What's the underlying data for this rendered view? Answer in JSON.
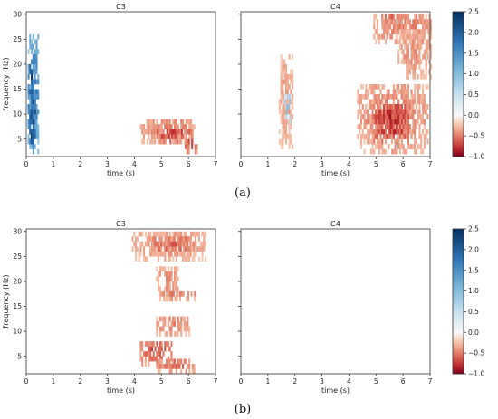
{
  "chart_data": [
    {
      "type": "heatmap",
      "figure_label": "(a)",
      "x_ticks": [
        0,
        1,
        2,
        3,
        4,
        5,
        6,
        7
      ],
      "y_ticks": [
        5,
        10,
        15,
        20,
        25,
        30
      ],
      "xlim": [
        0,
        7
      ],
      "ylim": [
        1.5,
        30.5
      ],
      "xlabel": "time (s)",
      "ylabel": "frequency (Hz)",
      "colorbar": {
        "range": [
          -1.0,
          2.5
        ],
        "ticks": [
          -1.0,
          -0.5,
          0.0,
          0.5,
          1.0,
          1.5,
          2.0,
          2.5
        ],
        "tick_labels": [
          "−1.0",
          "−0.5",
          "0.0",
          "0.5",
          "1.0",
          "1.5",
          "2.0",
          "2.5"
        ],
        "colormap": "RdBu",
        "low_color": "#67001f",
        "mid_color": "#f7f7f7",
        "high_color": "#053061"
      },
      "panels": [
        {
          "title": "C3",
          "show_ylabels": true,
          "blobs": [
            {
              "x": [
                0.05,
                0.45
              ],
              "y": [
                2,
                26
              ],
              "value": 1.6
            },
            {
              "x": [
                0.05,
                0.35
              ],
              "y": [
                4,
                20
              ],
              "value": 2.2
            },
            {
              "x": [
                0.1,
                0.3
              ],
              "y": [
                3,
                7
              ],
              "value": 2.0
            },
            {
              "x": [
                4.2,
                6.2
              ],
              "y": [
                4,
                9
              ],
              "value": -0.45
            },
            {
              "x": [
                4.7,
                6.1
              ],
              "y": [
                4,
                7
              ],
              "value": -0.7
            },
            {
              "x": [
                5.8,
                6.3
              ],
              "y": [
                2,
                5
              ],
              "value": -0.6
            }
          ]
        },
        {
          "title": "C4",
          "show_ylabels": false,
          "blobs": [
            {
              "x": [
                1.4,
                1.9
              ],
              "y": [
                3,
                22
              ],
              "value": -0.35
            },
            {
              "x": [
                1.6,
                1.8
              ],
              "y": [
                8,
                14
              ],
              "value": 0.9
            },
            {
              "x": [
                4.3,
                6.9
              ],
              "y": [
                2,
                16
              ],
              "value": -0.45
            },
            {
              "x": [
                4.9,
                6.2
              ],
              "y": [
                4,
                12
              ],
              "value": -0.75
            },
            {
              "x": [
                4.9,
                7.0
              ],
              "y": [
                24,
                30
              ],
              "value": -0.45
            },
            {
              "x": [
                5.8,
                7.0
              ],
              "y": [
                17,
                27
              ],
              "value": -0.4
            },
            {
              "x": [
                5.2,
                6.1
              ],
              "y": [
                28,
                30
              ],
              "value": -0.55
            }
          ]
        }
      ]
    },
    {
      "type": "heatmap",
      "figure_label": "(b)",
      "x_ticks": [
        0,
        1,
        2,
        3,
        4,
        5,
        6,
        7
      ],
      "y_ticks": [
        5,
        10,
        15,
        20,
        25,
        30
      ],
      "xlim": [
        0,
        7
      ],
      "ylim": [
        1.5,
        30.5
      ],
      "xlabel": "time (s)",
      "ylabel": "frequency (Hz)",
      "colorbar": {
        "range": [
          -1.0,
          2.5
        ],
        "ticks": [
          -1.0,
          -0.5,
          0.0,
          0.5,
          1.0,
          1.5,
          2.0,
          2.5
        ],
        "tick_labels": [
          "−1.0",
          "−0.5",
          "0.0",
          "0.5",
          "1.0",
          "1.5",
          "2.0",
          "2.5"
        ],
        "colormap": "RdBu",
        "low_color": "#67001f",
        "mid_color": "#f7f7f7",
        "high_color": "#053061"
      },
      "panels": [
        {
          "title": "C3",
          "show_ylabels": true,
          "blobs": [
            {
              "x": [
                3.9,
                6.6
              ],
              "y": [
                24,
                30
              ],
              "value": -0.4
            },
            {
              "x": [
                4.6,
                6.3
              ],
              "y": [
                25,
                29
              ],
              "value": -0.55
            },
            {
              "x": [
                4.8,
                5.6
              ],
              "y": [
                16,
                23
              ],
              "value": -0.4
            },
            {
              "x": [
                5.0,
                6.2
              ],
              "y": [
                16,
                18
              ],
              "value": -0.5
            },
            {
              "x": [
                4.8,
                6.0
              ],
              "y": [
                9,
                13
              ],
              "value": -0.45
            },
            {
              "x": [
                4.2,
                5.4
              ],
              "y": [
                3,
                8
              ],
              "value": -0.6
            },
            {
              "x": [
                4.8,
                6.2
              ],
              "y": [
                1.5,
                4
              ],
              "value": -0.55
            }
          ]
        },
        {
          "title": "C4",
          "show_ylabels": false,
          "blobs": []
        }
      ]
    }
  ]
}
